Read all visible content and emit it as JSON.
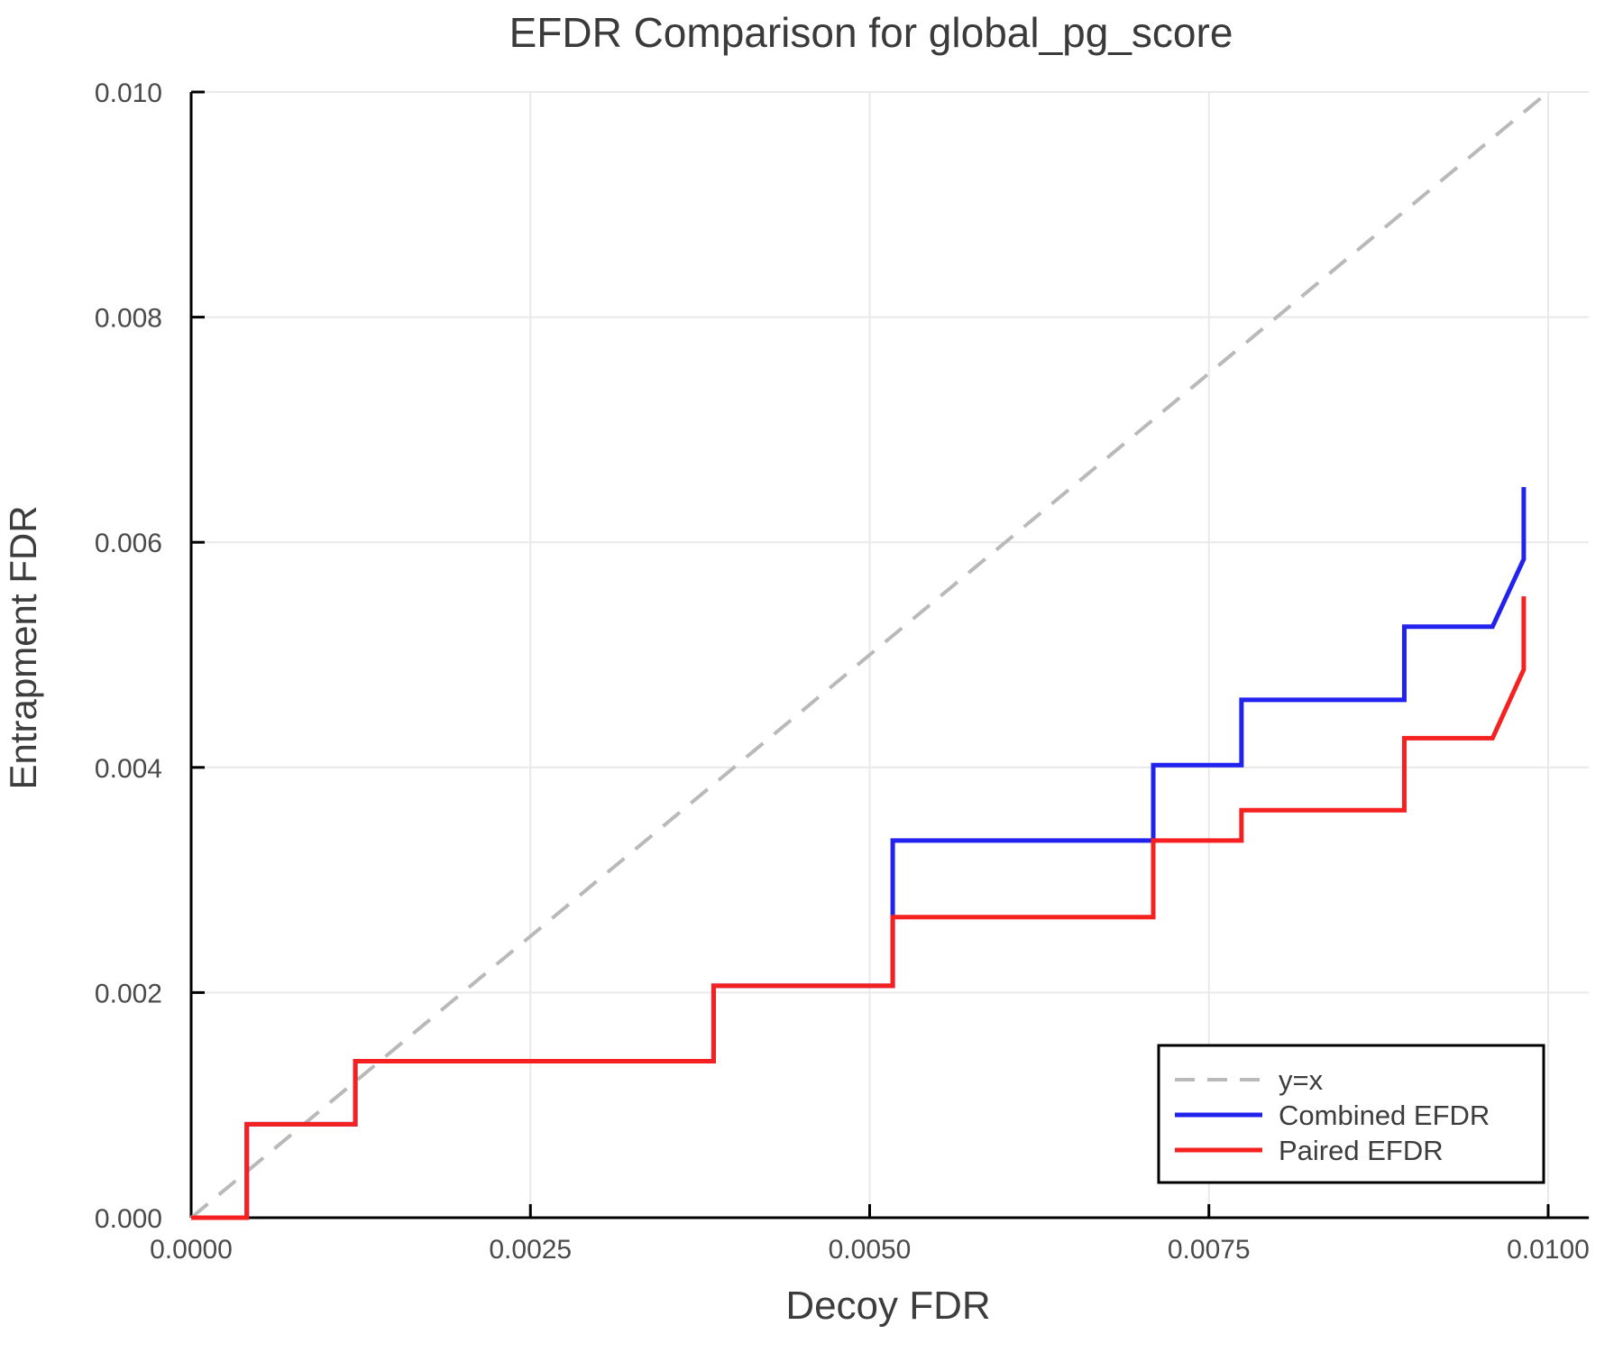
{
  "page": {
    "background": "#ffffff"
  },
  "chart_data": {
    "type": "line",
    "title": "EFDR Comparison for global_pg_score",
    "xlabel": "Decoy FDR",
    "ylabel": "Entrapment FDR",
    "xlim": [
      0,
      0.0103
    ],
    "ylim": [
      0,
      0.01
    ],
    "grid": true,
    "grid_color": "#e9e9e9",
    "axis_color": "#000000",
    "tick_label_color": "#4a4a4a",
    "text_color": "#3d3d3d",
    "x_ticks": {
      "values": [
        0,
        0.0025,
        0.005,
        0.0075,
        0.01
      ],
      "labels": [
        "0.0000",
        "0.0025",
        "0.0050",
        "0.0075",
        "0.0100"
      ]
    },
    "y_ticks": {
      "values": [
        0,
        0.002,
        0.004,
        0.006,
        0.008,
        0.01
      ],
      "labels": [
        "0.000",
        "0.002",
        "0.004",
        "0.006",
        "0.008",
        "0.010"
      ]
    },
    "legend": {
      "position": "lower-right",
      "entries": [
        {
          "label": "y=x",
          "color": "#b9b9b9",
          "style": "dashed"
        },
        {
          "label": "Combined EFDR",
          "color": "#2222ee",
          "style": "solid"
        },
        {
          "label": "Paired EFDR",
          "color": "#f52020",
          "style": "solid"
        }
      ]
    },
    "series": [
      {
        "name": "y=x",
        "style": "dashed",
        "color": "#b9b9b9",
        "x": [
          0,
          0.01
        ],
        "y": [
          0,
          0.01
        ]
      },
      {
        "name": "Combined EFDR",
        "style": "solid",
        "color": "#2222ee",
        "x": [
          0,
          0.00041,
          0.00041,
          0.00121,
          0.00121,
          0.00385,
          0.00385,
          0.00517,
          0.00517,
          0.00709,
          0.00709,
          0.00774,
          0.00774,
          0.00894,
          0.00894,
          0.00959,
          0.00982,
          0.00982
        ],
        "y": [
          0,
          0,
          0.00083,
          0.00083,
          0.00139,
          0.00139,
          0.00206,
          0.00206,
          0.00335,
          0.00335,
          0.00402,
          0.00402,
          0.0046,
          0.0046,
          0.00525,
          0.00525,
          0.00585,
          0.00649
        ]
      },
      {
        "name": "Paired EFDR",
        "style": "solid",
        "color": "#f52020",
        "x": [
          0,
          0.00041,
          0.00041,
          0.00121,
          0.00121,
          0.00385,
          0.00385,
          0.00517,
          0.00517,
          0.00709,
          0.00709,
          0.00774,
          0.00774,
          0.00894,
          0.00894,
          0.00959,
          0.00982,
          0.00982
        ],
        "y": [
          0,
          0,
          0.00083,
          0.00083,
          0.00139,
          0.00139,
          0.00206,
          0.00206,
          0.00267,
          0.00267,
          0.00335,
          0.00335,
          0.00362,
          0.00362,
          0.00426,
          0.00426,
          0.00487,
          0.00552
        ]
      }
    ]
  }
}
